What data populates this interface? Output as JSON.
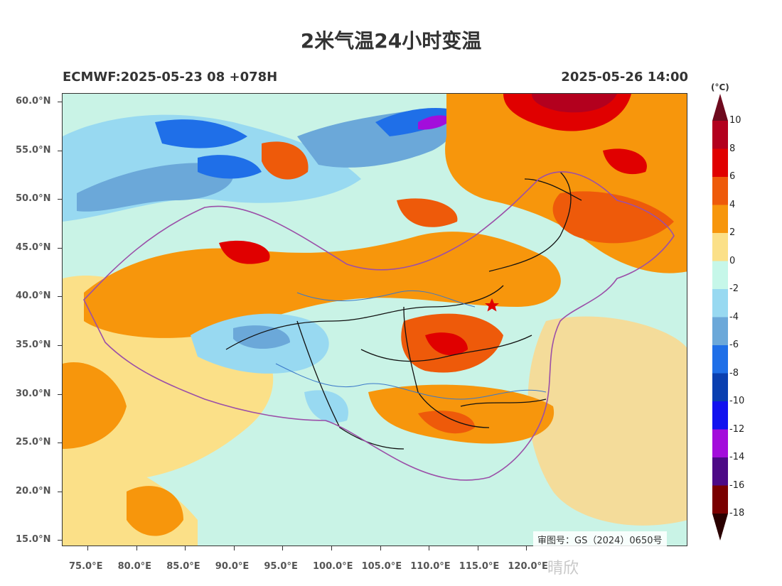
{
  "title": "2米气温24小时变温",
  "model_run": "ECMWF:2025-05-23 08 +078H",
  "valid_time": "2025-05-26 14:00",
  "approval_number": "审图号：GS（2024）0650号",
  "colorbar": {
    "unit": "(°C)",
    "levels": [
      "10",
      "8",
      "6",
      "4",
      "2",
      "0",
      "-2",
      "-4",
      "-6",
      "-8",
      "-10",
      "-12",
      "-14",
      "-16",
      "-18"
    ],
    "colors": [
      "#6e0a1e",
      "#b3001e",
      "#e00000",
      "#ee5a0a",
      "#f7960c",
      "#fbe088",
      "#c6f7e9",
      "#98d9f1",
      "#6ba8d9",
      "#1f6fe8",
      "#0a3fb0",
      "#1212ef",
      "#a30ddb",
      "#4d0a86",
      "#7a0000",
      "#2a0000"
    ]
  },
  "axes": {
    "lat_labels": [
      "60.0°N",
      "55.0°N",
      "50.0°N",
      "45.0°N",
      "40.0°N",
      "35.0°N",
      "30.0°N",
      "25.0°N",
      "20.0°N",
      "15.0°N"
    ],
    "lon_labels": [
      "75.0°E",
      "80.0°E",
      "85.0°E",
      "90.0°E",
      "95.0°E",
      "100.0°E",
      "105.0°E",
      "110.0°E",
      "115.0°E",
      "120.0°E"
    ]
  },
  "watermark": "晴欣"
}
